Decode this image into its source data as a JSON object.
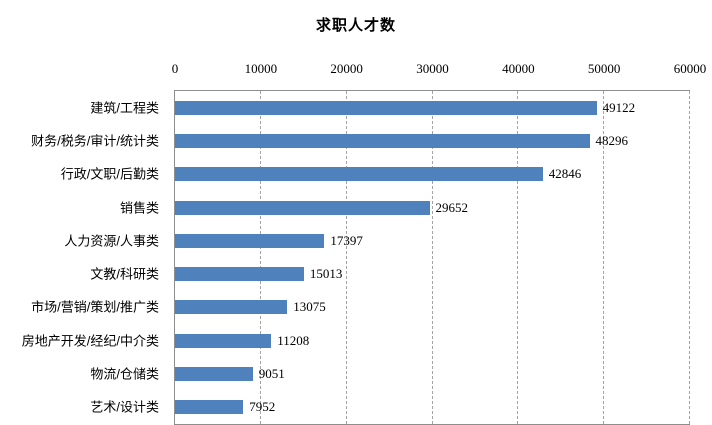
{
  "title": "求职人才数",
  "chart_data": {
    "type": "bar",
    "orientation": "horizontal",
    "title": "求职人才数",
    "categories": [
      "建筑/工程类",
      "财务/税务/审计/统计类",
      "行政/文职/后勤类",
      "销售类",
      "人力资源/人事类",
      "文教/科研类",
      "市场/营销/策划/推广类",
      "房地产开发/经纪/中介类",
      "物流/仓储类",
      "艺术/设计类"
    ],
    "values": [
      49122,
      48296,
      42846,
      29652,
      17397,
      15013,
      13075,
      11208,
      9051,
      7952
    ],
    "value_labels": [
      "49122",
      "48296",
      "42846",
      "29652",
      "17397",
      "15013",
      "13075",
      "11208",
      "9051",
      "7952"
    ],
    "xlim": [
      0,
      60000
    ],
    "xticks": [
      0,
      10000,
      20000,
      30000,
      40000,
      50000,
      60000
    ],
    "xtick_labels": [
      "0",
      "10000",
      "20000",
      "30000",
      "40000",
      "50000",
      "60000"
    ],
    "grid": "vertical-dashed",
    "legend": "none",
    "axis_position": "top",
    "bar_color": "#4f81bd",
    "border_color": "#8e8e8e",
    "grid_color": "#a3a3a3",
    "background_color": "#ffffff",
    "text_color": "#000000"
  }
}
